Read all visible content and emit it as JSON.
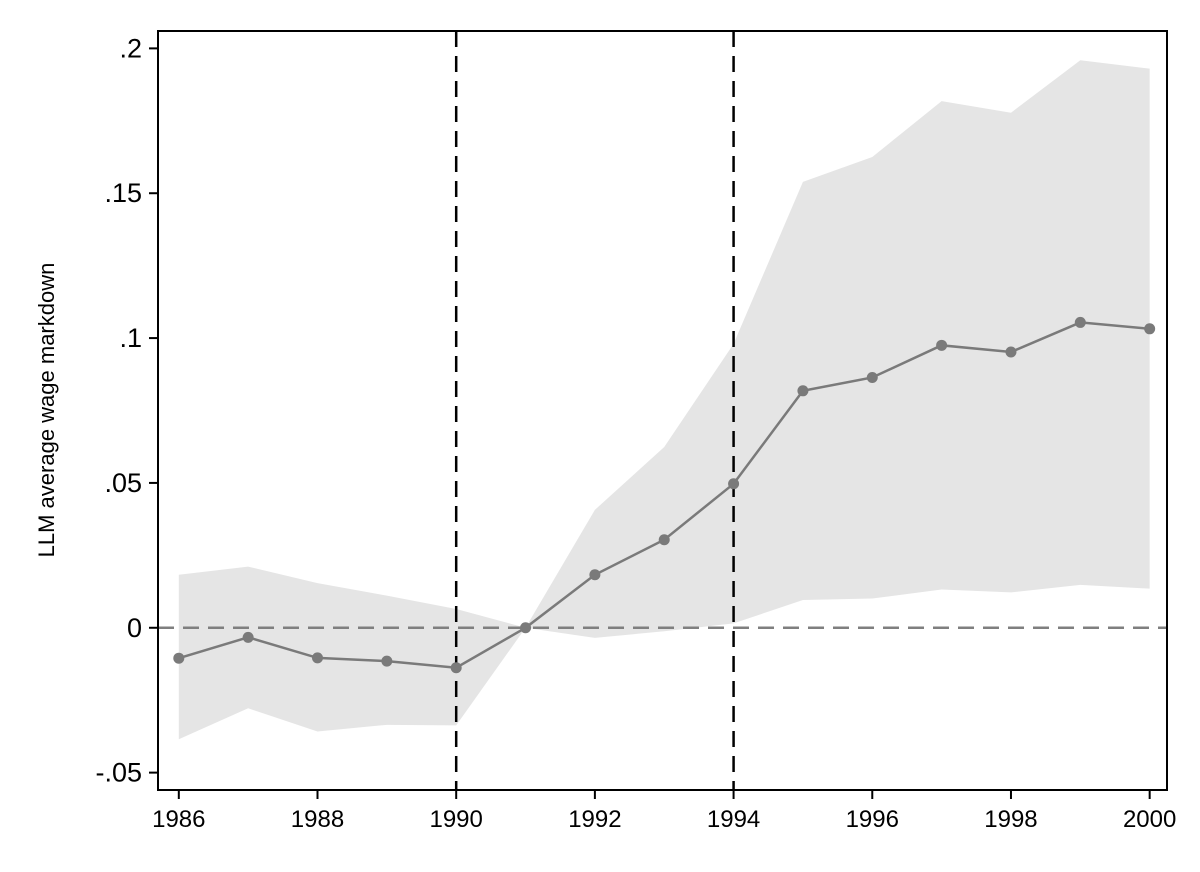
{
  "chart_data": {
    "type": "line",
    "title": "",
    "xlabel": "",
    "ylabel": "LLM average wage markdown",
    "xlim": [
      1985.7,
      2000.25
    ],
    "ylim": [
      -0.056,
      0.206
    ],
    "x_ticks": [
      1986,
      1988,
      1990,
      1992,
      1994,
      1996,
      1998,
      2000
    ],
    "x_tick_labels": [
      "1986",
      "1988",
      "1990",
      "1992",
      "1994",
      "1996",
      "1998",
      "2000"
    ],
    "y_ticks": [
      -0.05,
      0,
      0.05,
      0.1,
      0.15,
      0.2
    ],
    "y_tick_labels": [
      "-.05",
      "0",
      ".05",
      ".1",
      ".15",
      ".2"
    ],
    "grid": false,
    "legend": "none",
    "x": [
      1986,
      1987,
      1988,
      1989,
      1990,
      1991,
      1992,
      1993,
      1994,
      1995,
      1996,
      1997,
      1998,
      1999,
      2000
    ],
    "series": [
      {
        "values": [
          -0.0105,
          -0.0033,
          -0.0104,
          -0.0115,
          -0.0138,
          0.0,
          0.0183,
          0.0304,
          0.0497,
          0.0818,
          0.0864,
          0.0975,
          0.0952,
          0.1054,
          0.1032
        ],
        "lower": [
          -0.0385,
          -0.0278,
          -0.0358,
          -0.0335,
          -0.0337,
          0.0,
          -0.0035,
          -0.0012,
          0.0015,
          0.0096,
          0.0101,
          0.0132,
          0.0122,
          0.0148,
          0.0135
        ],
        "upper": [
          0.0183,
          0.0211,
          0.0154,
          0.0111,
          0.0065,
          0.0,
          0.0407,
          0.0624,
          0.098,
          0.1539,
          0.1625,
          0.1818,
          0.1778,
          0.1959,
          0.193
        ]
      }
    ],
    "reference_lines": {
      "horizontal_dashed_y": 0,
      "vertical_dashed_x": [
        1990,
        1994
      ]
    },
    "colors": {
      "line": "#7a7a7a",
      "marker": "#7a7a7a",
      "band": "#e5e5e5",
      "zero_line": "#7f7f7f",
      "vlines": "#000000",
      "axis": "#000000"
    }
  }
}
